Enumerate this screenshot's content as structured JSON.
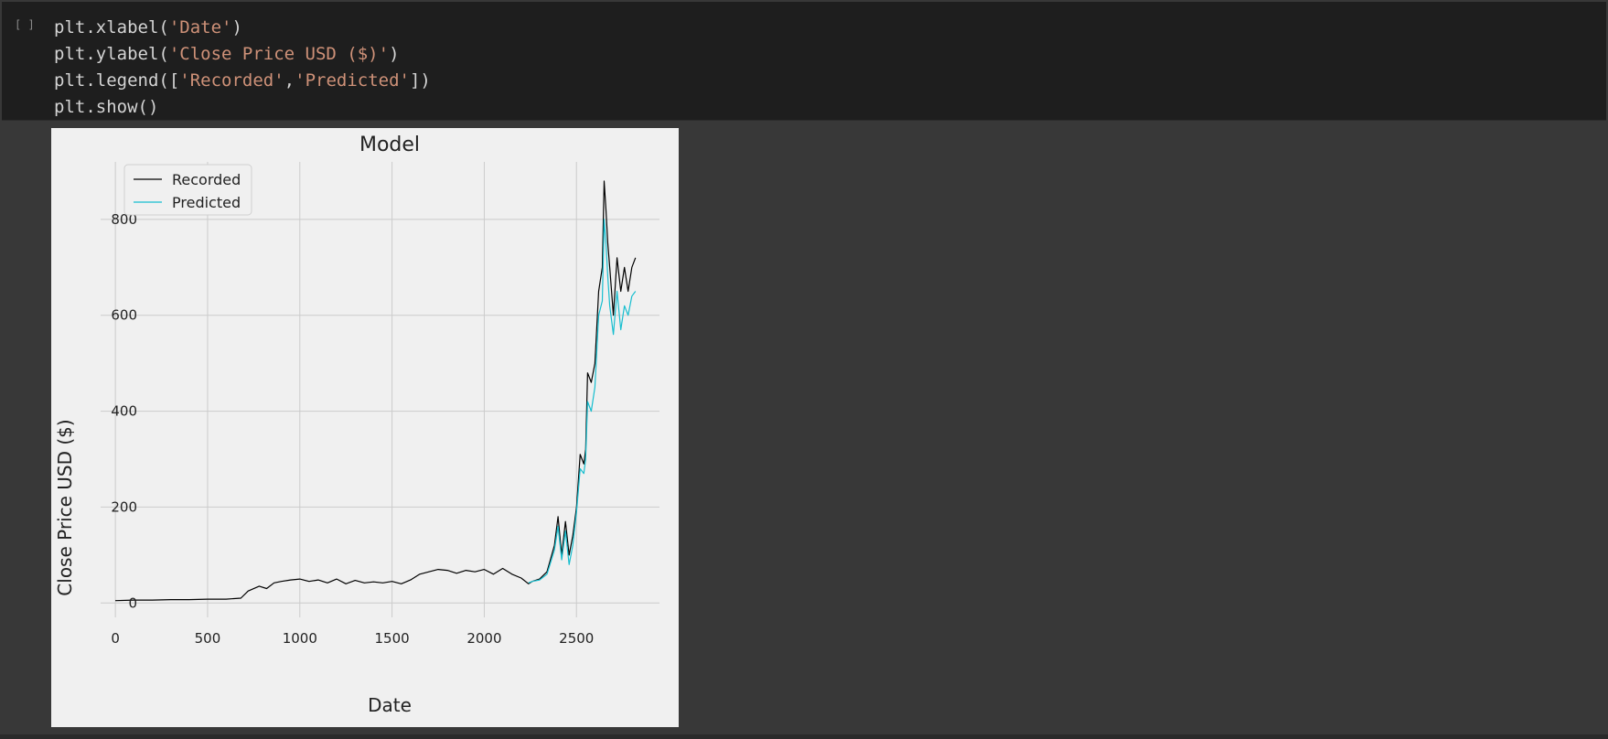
{
  "cell": {
    "run_indicator": "[ ]",
    "code_lines": [
      [
        {
          "t": "plt.xlabel(",
          "c": "plain"
        },
        {
          "t": "'Date'",
          "c": "str"
        },
        {
          "t": ")",
          "c": "plain"
        }
      ],
      [
        {
          "t": "plt.ylabel(",
          "c": "plain"
        },
        {
          "t": "'Close Price USD ($)'",
          "c": "str"
        },
        {
          "t": ")",
          "c": "plain"
        }
      ],
      [
        {
          "t": "plt.legend([",
          "c": "plain"
        },
        {
          "t": "'Recorded'",
          "c": "str"
        },
        {
          "t": ",",
          "c": "plain"
        },
        {
          "t": "'Predicted'",
          "c": "str"
        },
        {
          "t": "])",
          "c": "plain"
        }
      ],
      [
        {
          "t": "plt.show()",
          "c": "plain"
        }
      ]
    ]
  },
  "chart_data": {
    "type": "line",
    "title": "Model",
    "xlabel": "Date",
    "ylabel": "Close Price USD ($)",
    "xlim": [
      -80,
      2950
    ],
    "ylim": [
      -30,
      920
    ],
    "xticks": [
      0,
      500,
      1000,
      1500,
      2000,
      2500
    ],
    "yticks": [
      0,
      200,
      400,
      600,
      800
    ],
    "grid": true,
    "legend_position": "top-left",
    "colors": {
      "recorded": "#000000",
      "predicted": "#17becf",
      "background": "#f0f0f0",
      "grid": "#cbcbcb"
    },
    "series": [
      {
        "name": "Recorded",
        "x": [
          0,
          100,
          200,
          300,
          400,
          500,
          600,
          680,
          720,
          780,
          820,
          860,
          900,
          950,
          1000,
          1050,
          1100,
          1150,
          1200,
          1250,
          1300,
          1350,
          1400,
          1450,
          1500,
          1550,
          1600,
          1650,
          1700,
          1750,
          1800,
          1850,
          1900,
          1950,
          2000,
          2050,
          2100,
          2150,
          2200,
          2240,
          2260,
          2300,
          2340,
          2380,
          2400,
          2420,
          2440,
          2460,
          2480,
          2500,
          2520,
          2540,
          2550,
          2560,
          2580,
          2600,
          2620,
          2640,
          2650,
          2660,
          2670,
          2680,
          2700,
          2720,
          2740,
          2760,
          2780,
          2800,
          2820
        ],
        "y": [
          5,
          6,
          6,
          7,
          7,
          8,
          8,
          10,
          25,
          35,
          30,
          42,
          45,
          48,
          50,
          45,
          48,
          42,
          50,
          40,
          47,
          42,
          44,
          42,
          45,
          40,
          48,
          60,
          65,
          70,
          68,
          62,
          68,
          65,
          70,
          60,
          72,
          60,
          52,
          40,
          45,
          50,
          65,
          120,
          180,
          100,
          170,
          100,
          140,
          200,
          310,
          290,
          320,
          480,
          460,
          500,
          650,
          700,
          880,
          820,
          750,
          700,
          600,
          720,
          650,
          700,
          650,
          700,
          720
        ]
      },
      {
        "name": "Predicted",
        "x": [
          2240,
          2260,
          2300,
          2340,
          2380,
          2400,
          2420,
          2440,
          2460,
          2480,
          2500,
          2520,
          2540,
          2550,
          2560,
          2580,
          2600,
          2620,
          2640,
          2650,
          2660,
          2670,
          2680,
          2700,
          2720,
          2740,
          2760,
          2780,
          2800,
          2820
        ],
        "y": [
          42,
          45,
          48,
          60,
          110,
          160,
          90,
          150,
          80,
          120,
          190,
          280,
          270,
          300,
          420,
          400,
          450,
          600,
          630,
          800,
          750,
          680,
          620,
          560,
          650,
          570,
          620,
          600,
          640,
          650
        ]
      }
    ]
  }
}
